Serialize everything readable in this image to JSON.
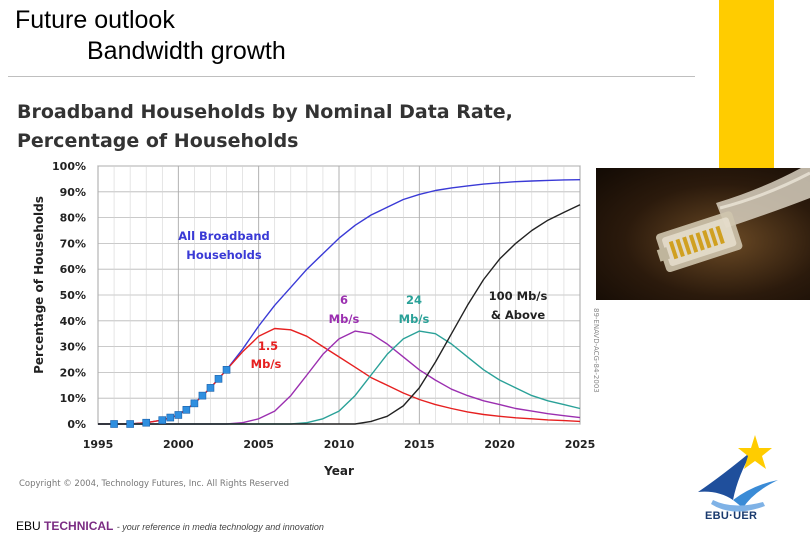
{
  "slide": {
    "title_line1": "Future outlook",
    "title_line2": "Bandwidth growth",
    "accent_color": "#ffcc00"
  },
  "footer": {
    "org": "EBU",
    "technical": "TECHNICAL",
    "tagline": "- your reference in media technology and innovation"
  },
  "logo": {
    "text": "EBU·UER",
    "icon": "ebu-star-logo-icon"
  },
  "photo": {
    "icon": "ethernet-cable-photo-icon"
  },
  "chart_data": {
    "type": "line",
    "title_line1": "Broadband Households by Nominal Data Rate,",
    "title_line2": "Percentage of Households",
    "xlabel": "Year",
    "ylabel": "Percentage of Households",
    "xlim": [
      1995,
      2025
    ],
    "ylim": [
      0,
      100
    ],
    "x_ticks": [
      1995,
      2000,
      2005,
      2010,
      2015,
      2020,
      2025
    ],
    "y_ticks": [
      "0%",
      "10%",
      "20%",
      "30%",
      "40%",
      "50%",
      "60%",
      "70%",
      "80%",
      "90%",
      "100%"
    ],
    "grid": true,
    "copyright": "Copyright © 2004, Technology Futures, Inc. All Rights Reserved",
    "side_credit": "89-ENAVD-ACG-84-2003",
    "x": [
      1995,
      1996,
      1997,
      1998,
      1999,
      2000,
      2001,
      2002,
      2003,
      2004,
      2005,
      2006,
      2007,
      2008,
      2009,
      2010,
      2011,
      2012,
      2013,
      2014,
      2015,
      2016,
      2017,
      2018,
      2019,
      2020,
      2021,
      2022,
      2023,
      2024,
      2025
    ],
    "series": [
      {
        "name": "All Broadband Households",
        "color": "#3a3ad6",
        "values": [
          0,
          0,
          0,
          0.5,
          1.5,
          3.5,
          8,
          14,
          21,
          29,
          38,
          46,
          53,
          60,
          66,
          72,
          77,
          81,
          84,
          87,
          89,
          90.5,
          91.5,
          92.3,
          93,
          93.5,
          93.9,
          94.2,
          94.4,
          94.6,
          94.7
        ]
      },
      {
        "name": "1.5 Mb/s",
        "color": "#e62020",
        "values": [
          0,
          0,
          0,
          0.5,
          1.5,
          3.5,
          8,
          14,
          21,
          28,
          34,
          37,
          36.5,
          34,
          30,
          26,
          22,
          18,
          15,
          12,
          9.5,
          7.5,
          6,
          4.7,
          3.7,
          3,
          2.4,
          2,
          1.6,
          1.3,
          1
        ]
      },
      {
        "name": "6 Mb/s",
        "color": "#9b2fb0",
        "values": [
          0,
          0,
          0,
          0,
          0,
          0,
          0,
          0,
          0,
          0.5,
          2,
          5,
          11,
          19,
          27,
          33,
          36,
          35,
          31,
          26,
          21,
          17,
          13.5,
          11,
          9,
          7.5,
          6,
          5,
          4,
          3.2,
          2.5
        ]
      },
      {
        "name": "24 Mb/s",
        "color": "#2aa198",
        "values": [
          0,
          0,
          0,
          0,
          0,
          0,
          0,
          0,
          0,
          0,
          0,
          0,
          0,
          0.5,
          2,
          5,
          11,
          19,
          27,
          33,
          36,
          35,
          31,
          26,
          21,
          17,
          14,
          11,
          9,
          7.5,
          6
        ]
      },
      {
        "name": "100 Mb/s & Above",
        "color": "#222222",
        "values": [
          0,
          0,
          0,
          0,
          0,
          0,
          0,
          0,
          0,
          0,
          0,
          0,
          0,
          0,
          0,
          0,
          0,
          1,
          3,
          7,
          14,
          24,
          35,
          46,
          56,
          64,
          70,
          75,
          79,
          82,
          85
        ]
      }
    ],
    "markers": {
      "color": "#2f8fe0",
      "x": [
        1996,
        1997,
        1998,
        1999,
        1999.5,
        2000,
        2000.5,
        2001,
        2001.5,
        2002,
        2002.5,
        2003
      ],
      "y": [
        0,
        0,
        0.5,
        1.5,
        2.5,
        3.5,
        5.5,
        8,
        11,
        14,
        17.5,
        21
      ]
    },
    "annotations": [
      {
        "text": "All Broadband",
        "series": 0
      },
      {
        "text": "Households",
        "series": 0
      },
      {
        "text": "1.5",
        "series": 1
      },
      {
        "text": "Mb/s",
        "series": 1
      },
      {
        "text": "6",
        "series": 2
      },
      {
        "text": "Mb/s",
        "series": 2
      },
      {
        "text": "24",
        "series": 3
      },
      {
        "text": "Mb/s",
        "series": 3
      },
      {
        "text": "100 Mb/s",
        "series": 4
      },
      {
        "text": "& Above",
        "series": 4
      }
    ]
  }
}
